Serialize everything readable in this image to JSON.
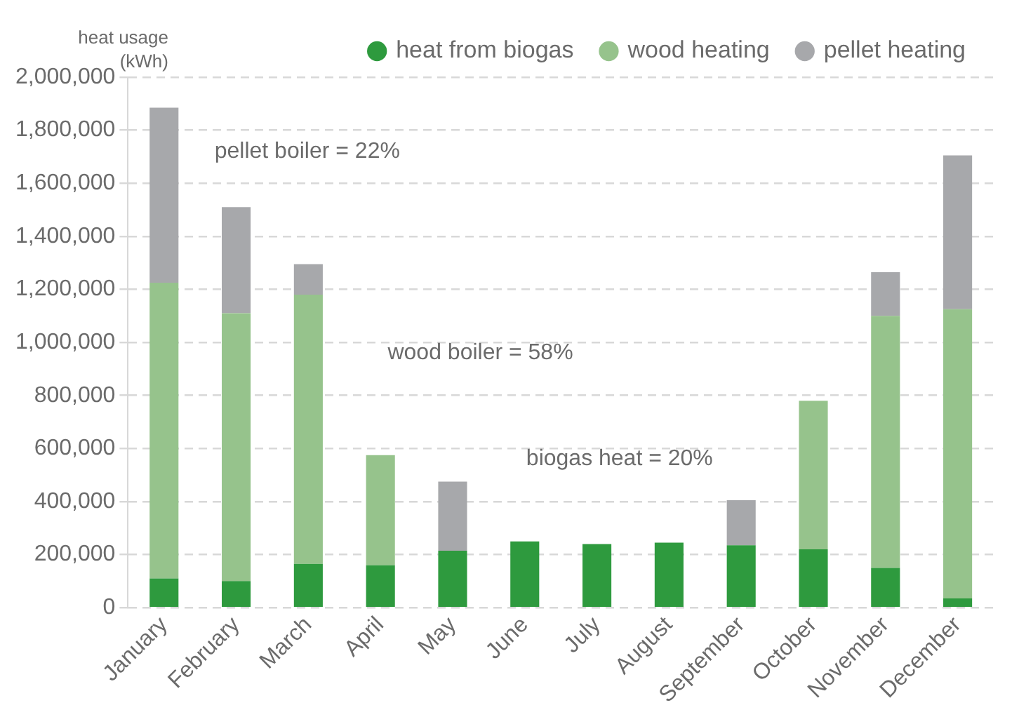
{
  "chart_data": {
    "type": "bar",
    "stacked": true,
    "ylabel": "heat usage (kWh)",
    "categories": [
      "January",
      "February",
      "March",
      "April",
      "May",
      "June",
      "July",
      "August",
      "September",
      "October",
      "November",
      "December"
    ],
    "series": [
      {
        "name": "heat from biogas",
        "color": "#2e9a3e",
        "values": [
          110000,
          100000,
          165000,
          160000,
          215000,
          250000,
          240000,
          245000,
          235000,
          220000,
          150000,
          35000
        ]
      },
      {
        "name": "wood heating",
        "color": "#96c38c",
        "values": [
          1115000,
          1010000,
          1015000,
          415000,
          0,
          0,
          0,
          0,
          0,
          560000,
          950000,
          1090000
        ]
      },
      {
        "name": "pellet heating",
        "color": "#a7a8ab",
        "values": [
          660000,
          400000,
          115000,
          0,
          260000,
          0,
          0,
          0,
          170000,
          0,
          165000,
          580000
        ]
      }
    ],
    "ylim": [
      0,
      2000000
    ],
    "yticks": [
      {
        "value": 0,
        "label": "0"
      },
      {
        "value": 200000,
        "label": "200,000"
      },
      {
        "value": 400000,
        "label": "400,000"
      },
      {
        "value": 600000,
        "label": "600,000"
      },
      {
        "value": 800000,
        "label": "800,000"
      },
      {
        "value": 1000000,
        "label": "1,000,000"
      },
      {
        "value": 1200000,
        "label": "1,200,000"
      },
      {
        "value": 1400000,
        "label": "1,400,000"
      },
      {
        "value": 1600000,
        "label": "1,600,000"
      },
      {
        "value": 1800000,
        "label": "1,800,000"
      },
      {
        "value": 2000000,
        "label": "2,000,000"
      }
    ],
    "grid": "y",
    "legend": "top right",
    "marker": "circle",
    "annotations": [
      "pellet boiler = 22%",
      "wood boiler = 58%",
      "biogas heat = 20%"
    ]
  }
}
